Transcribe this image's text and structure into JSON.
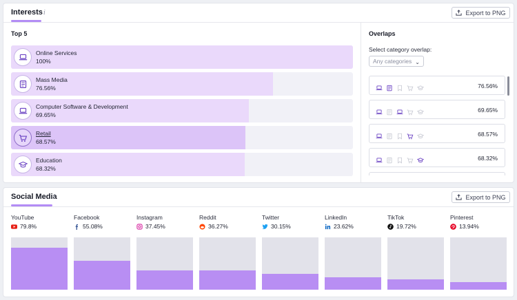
{
  "interests": {
    "title": "Interests",
    "info": "i",
    "export_label": "Export to PNG",
    "top_label": "Top 5",
    "items": [
      {
        "name": "Online Services",
        "pct_label": "100%",
        "value": 100,
        "icon": "laptop-icon"
      },
      {
        "name": "Mass Media",
        "pct_label": "76.56%",
        "value": 76.56,
        "icon": "newspaper-icon"
      },
      {
        "name": "Computer Software & Development",
        "pct_label": "69.65%",
        "value": 69.65,
        "icon": "laptop-icon"
      },
      {
        "name": "Retail",
        "pct_label": "68.57%",
        "value": 68.57,
        "icon": "cart-icon"
      },
      {
        "name": "Education",
        "pct_label": "68.32%",
        "value": 68.32,
        "icon": "graduation-cap-icon"
      }
    ]
  },
  "overlaps": {
    "title": "Overlaps",
    "select_label": "Select category overlap:",
    "dropdown_value": "Any categories",
    "rows": [
      {
        "pct": "76.56%",
        "active": [
          true,
          true,
          false,
          false,
          false
        ]
      },
      {
        "pct": "69.65%",
        "active": [
          true,
          false,
          true,
          false,
          false
        ]
      },
      {
        "pct": "68.57%",
        "active": [
          true,
          false,
          false,
          true,
          false
        ]
      },
      {
        "pct": "68.32%",
        "active": [
          true,
          false,
          false,
          false,
          true
        ]
      }
    ]
  },
  "social": {
    "title": "Social Media",
    "info": "i",
    "export_label": "Export to PNG",
    "platforms": [
      {
        "name": "YouTube",
        "pct": "79.8%",
        "value": 79.8,
        "icon": "youtube-icon",
        "color": "#e62117"
      },
      {
        "name": "Facebook",
        "pct": "55.08%",
        "value": 55.08,
        "icon": "facebook-icon",
        "color": "#3b5998"
      },
      {
        "name": "Instagram",
        "pct": "37.45%",
        "value": 37.45,
        "icon": "instagram-icon",
        "color": "#d6249f"
      },
      {
        "name": "Reddit",
        "pct": "36.27%",
        "value": 36.27,
        "icon": "reddit-icon",
        "color": "#ff4500"
      },
      {
        "name": "Twitter",
        "pct": "30.15%",
        "value": 30.15,
        "icon": "twitter-icon",
        "color": "#1da1f2"
      },
      {
        "name": "LinkedIn",
        "pct": "23.62%",
        "value": 23.62,
        "icon": "linkedin-icon",
        "color": "#0a66c2"
      },
      {
        "name": "TikTok",
        "pct": "19.72%",
        "value": 19.72,
        "icon": "tiktok-icon",
        "color": "#111111"
      },
      {
        "name": "Pinterest",
        "pct": "13.94%",
        "value": 13.94,
        "icon": "pinterest-icon",
        "color": "#e60023"
      }
    ]
  },
  "colors": {
    "accent": "#b88ef3",
    "bar_fill": "#ead9fb",
    "icon_purple": "#6a42c2",
    "icon_muted": "#c8cad3"
  }
}
